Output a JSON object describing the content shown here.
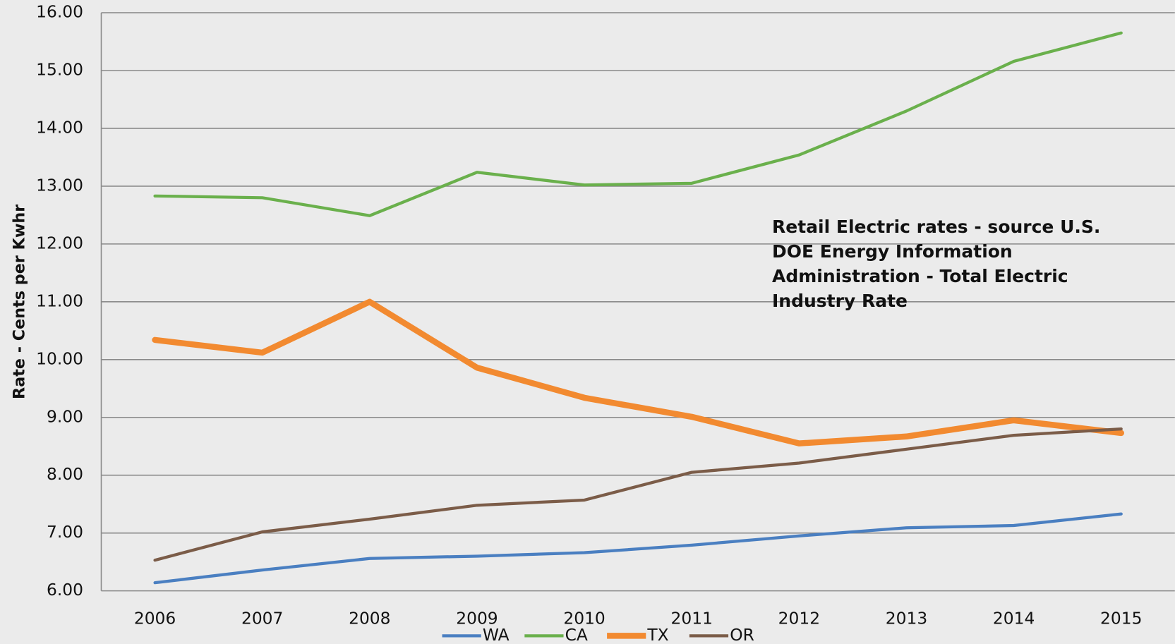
{
  "chart_data": {
    "type": "line",
    "y_label": "Rate - Cents per Kwhr",
    "annotation": "Retail Electric rates - source U.S. DOE Energy Information Administration - Total Electric Industry Rate",
    "categories": [
      "2006",
      "2007",
      "2008",
      "2009",
      "2010",
      "2011",
      "2012",
      "2013",
      "2014",
      "2015"
    ],
    "series": [
      {
        "name": "WA",
        "color": "#4a7fc1",
        "line_width": 4,
        "values": [
          6.14,
          6.36,
          6.56,
          6.6,
          6.66,
          6.79,
          6.95,
          7.09,
          7.13,
          7.33
        ]
      },
      {
        "name": "CA",
        "color": "#6ab04c",
        "line_width": 4,
        "values": [
          12.83,
          12.8,
          12.49,
          13.24,
          13.02,
          13.05,
          13.54,
          14.3,
          15.16,
          15.65
        ]
      },
      {
        "name": "TX",
        "color": "#f28a30",
        "line_width": 8,
        "values": [
          10.34,
          10.12,
          11.0,
          9.86,
          9.34,
          9.01,
          8.55,
          8.67,
          8.95,
          8.73
        ]
      },
      {
        "name": "OR",
        "color": "#7b5c48",
        "line_width": 4,
        "values": [
          6.53,
          7.02,
          7.24,
          7.48,
          7.57,
          8.05,
          8.21,
          8.45,
          8.69,
          8.8
        ]
      }
    ],
    "ylim": [
      6,
      16
    ],
    "yticks": [
      {
        "value": 6,
        "label": "6.00"
      },
      {
        "value": 7,
        "label": "7.00"
      },
      {
        "value": 8,
        "label": "8.00"
      },
      {
        "value": 9,
        "label": "9.00"
      },
      {
        "value": 10,
        "label": "10.00"
      },
      {
        "value": 11,
        "label": "11.00"
      },
      {
        "value": 12,
        "label": "12.00"
      },
      {
        "value": 13,
        "label": "13.00"
      },
      {
        "value": 14,
        "label": "14.00"
      },
      {
        "value": 15,
        "label": "15.00"
      },
      {
        "value": 16,
        "label": "16.00"
      }
    ],
    "grid": true,
    "legend": "bottom"
  }
}
